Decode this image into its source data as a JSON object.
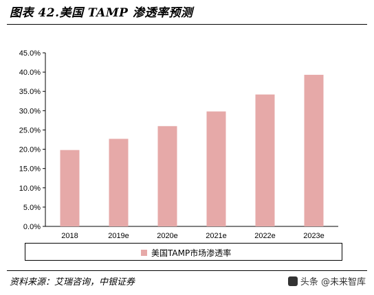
{
  "header": {
    "title": "图表 42.美国 TAMP 渗透率预测"
  },
  "footer": {
    "source": "资料来源：艾瑞咨询，中银证券",
    "watermark": "头条 @未来智库"
  },
  "colors": {
    "bar": "#E6A9A8",
    "axis": "#000000"
  },
  "chart_data": {
    "type": "bar",
    "categories": [
      "2018",
      "2019e",
      "2020e",
      "2021e",
      "2022e",
      "2023e"
    ],
    "series": [
      {
        "name": "美国TAMP市场渗透率",
        "values": [
          19.8,
          22.7,
          26.0,
          29.8,
          34.2,
          39.3
        ]
      }
    ],
    "yticks": [
      "0.0%",
      "5.0%",
      "10.0%",
      "15.0%",
      "20.0%",
      "25.0%",
      "30.0%",
      "35.0%",
      "40.0%",
      "45.0%"
    ],
    "ylim": [
      0,
      45
    ],
    "grid": false,
    "legend": "bottom"
  }
}
